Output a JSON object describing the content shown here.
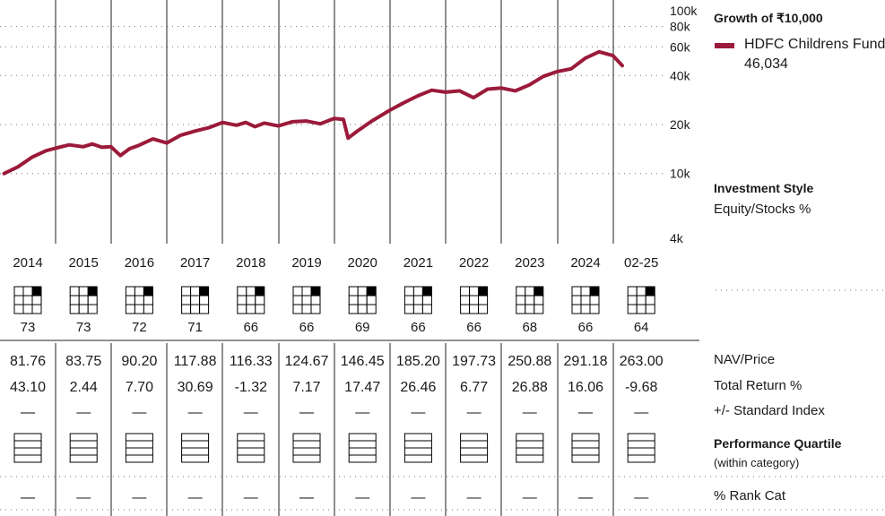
{
  "chart_data": {
    "type": "line",
    "title": "Growth of ₹10,000",
    "series": [
      {
        "name": "HDFC Childrens Fund",
        "color": "#9b1a3a",
        "final_value_label": "46,034",
        "points": [
          [
            "2014-01",
            10000
          ],
          [
            "2014-04",
            11000
          ],
          [
            "2014-07",
            12600
          ],
          [
            "2014-10",
            13800
          ],
          [
            "2014-12",
            14300
          ],
          [
            "2015-03",
            15000
          ],
          [
            "2015-06",
            14600
          ],
          [
            "2015-08",
            15200
          ],
          [
            "2015-10",
            14500
          ],
          [
            "2015-12",
            14600
          ],
          [
            "2016-02",
            12900
          ],
          [
            "2016-04",
            14200
          ],
          [
            "2016-06",
            14900
          ],
          [
            "2016-09",
            16300
          ],
          [
            "2016-12",
            15400
          ],
          [
            "2017-03",
            17200
          ],
          [
            "2017-06",
            18200
          ],
          [
            "2017-09",
            19100
          ],
          [
            "2017-12",
            20600
          ],
          [
            "2018-03",
            19800
          ],
          [
            "2018-05",
            20600
          ],
          [
            "2018-07",
            19400
          ],
          [
            "2018-09",
            20400
          ],
          [
            "2018-12",
            19600
          ],
          [
            "2019-03",
            20800
          ],
          [
            "2019-06",
            21000
          ],
          [
            "2019-09",
            20200
          ],
          [
            "2019-12",
            21800
          ],
          [
            "2020-02",
            21500
          ],
          [
            "2020-03",
            16500
          ],
          [
            "2020-05",
            18200
          ],
          [
            "2020-08",
            20900
          ],
          [
            "2020-12",
            24500
          ],
          [
            "2021-03",
            27200
          ],
          [
            "2021-06",
            30000
          ],
          [
            "2021-09",
            32500
          ],
          [
            "2021-12",
            31600
          ],
          [
            "2022-03",
            32200
          ],
          [
            "2022-06",
            29200
          ],
          [
            "2022-09",
            33000
          ],
          [
            "2022-12",
            33500
          ],
          [
            "2023-03",
            32200
          ],
          [
            "2023-06",
            35000
          ],
          [
            "2023-09",
            39500
          ],
          [
            "2023-12",
            42300
          ],
          [
            "2024-03",
            44000
          ],
          [
            "2024-06",
            51000
          ],
          [
            "2024-09",
            56000
          ],
          [
            "2024-12",
            53000
          ],
          [
            "2025-02",
            46034
          ]
        ]
      }
    ],
    "yscale": "log",
    "ylim": [
      4000,
      100000
    ],
    "yticks": [
      {
        "v": 100000,
        "label": "100k"
      },
      {
        "v": 80000,
        "label": "80k"
      },
      {
        "v": 60000,
        "label": "60k"
      },
      {
        "v": 40000,
        "label": "40k"
      },
      {
        "v": 20000,
        "label": "20k"
      },
      {
        "v": 10000,
        "label": "10k"
      },
      {
        "v": 4000,
        "label": "4k"
      }
    ],
    "years": [
      "2014",
      "2015",
      "2016",
      "2017",
      "2018",
      "2019",
      "2020",
      "2021",
      "2022",
      "2023",
      "2024",
      "02-25"
    ],
    "style_box_equity_pct": [
      "73",
      "73",
      "72",
      "71",
      "66",
      "66",
      "69",
      "66",
      "66",
      "68",
      "66",
      "64"
    ],
    "nav_price": [
      "81.76",
      "83.75",
      "90.20",
      "117.88",
      "116.33",
      "124.67",
      "146.45",
      "185.20",
      "197.73",
      "250.88",
      "291.18",
      "263.00"
    ],
    "total_return_pct": [
      "43.10",
      "2.44",
      "7.70",
      "30.69",
      "-1.32",
      "7.17",
      "17.47",
      "26.46",
      "6.77",
      "26.88",
      "16.06",
      "-9.68"
    ],
    "plus_minus_index": [
      "—",
      "—",
      "—",
      "—",
      "—",
      "—",
      "—",
      "—",
      "—",
      "—",
      "—",
      "—"
    ],
    "rank_cat": [
      "—",
      "—",
      "—",
      "—",
      "—",
      "—",
      "—",
      "—",
      "—",
      "—",
      "—",
      "—"
    ],
    "grid": true,
    "legend_position": "right"
  },
  "panel": {
    "growth_title": "Growth of ₹10,000",
    "fund_name": "HDFC Childrens Fund",
    "fund_value": "46,034",
    "investment_style": "Investment Style",
    "equity_stocks": "Equity/Stocks %",
    "nav_price": "NAV/Price",
    "total_return": "Total Return %",
    "plus_minus": "+/- Standard Index",
    "perf_quartile": "Performance Quartile",
    "within_category": "(within category)",
    "rank_cat": "% Rank Cat"
  }
}
